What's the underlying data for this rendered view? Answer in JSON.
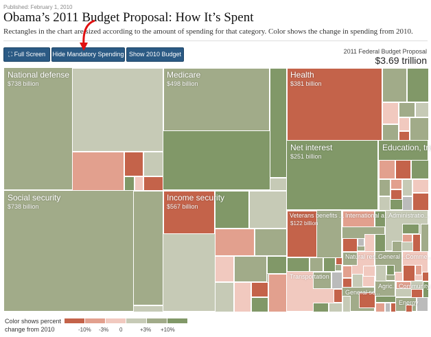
{
  "header": {
    "published": "Published: February 1, 2010",
    "title": "Obama’s 2011 Budget Proposal: How It’s Spent",
    "subtitle": "Rectangles in the chart are sized according to the amount of spending for that category. Color shows the change in spending from 2010."
  },
  "toolbar": {
    "full_screen": "Full Screen",
    "hide_mandatory": "Hide Mandatory Spending",
    "show_2010": "Show 2010 Budget"
  },
  "total": {
    "label": "2011 Federal Budget Proposal",
    "value": "$3.69 trillion"
  },
  "colors": {
    "red": "#c4634a",
    "lightred": "#e2a08e",
    "pale": "#f1c9bf",
    "neutral": "#c6cab6",
    "mid": "#a1ab89",
    "green": "#819868",
    "gray": "#bbbbbb"
  },
  "categories": [
    {
      "name": "National defense",
      "value": "$738 billion"
    },
    {
      "name": "Social security",
      "value": "$738 billion"
    },
    {
      "name": "Medicare",
      "value": "$498 billion"
    },
    {
      "name": "Income security",
      "value": "$567 billion"
    },
    {
      "name": "Health",
      "value": "$381 billion"
    },
    {
      "name": "Net interest",
      "value": "$251 billion"
    },
    {
      "name": "Education, train..."
    },
    {
      "name": "Veterans benefits ...",
      "value": "$122 billion"
    },
    {
      "name": "International a..."
    },
    {
      "name": "Administratio..."
    },
    {
      "name": "Transportation"
    },
    {
      "name": "Natural res..."
    },
    {
      "name": "General ..."
    },
    {
      "name": "Comme..."
    },
    {
      "name": "General sc..."
    },
    {
      "name": "Agric..."
    },
    {
      "name": "Community..."
    },
    {
      "name": "Energy"
    }
  ],
  "legend": {
    "label_line1": "Color shows percent",
    "label_line2": "change from 2010",
    "scale": [
      "red",
      "lightred",
      "pale",
      "neutral",
      "mid",
      "green"
    ],
    "ticks": [
      "-10%",
      "-3%",
      "0",
      "+3%",
      "+10%"
    ]
  }
}
